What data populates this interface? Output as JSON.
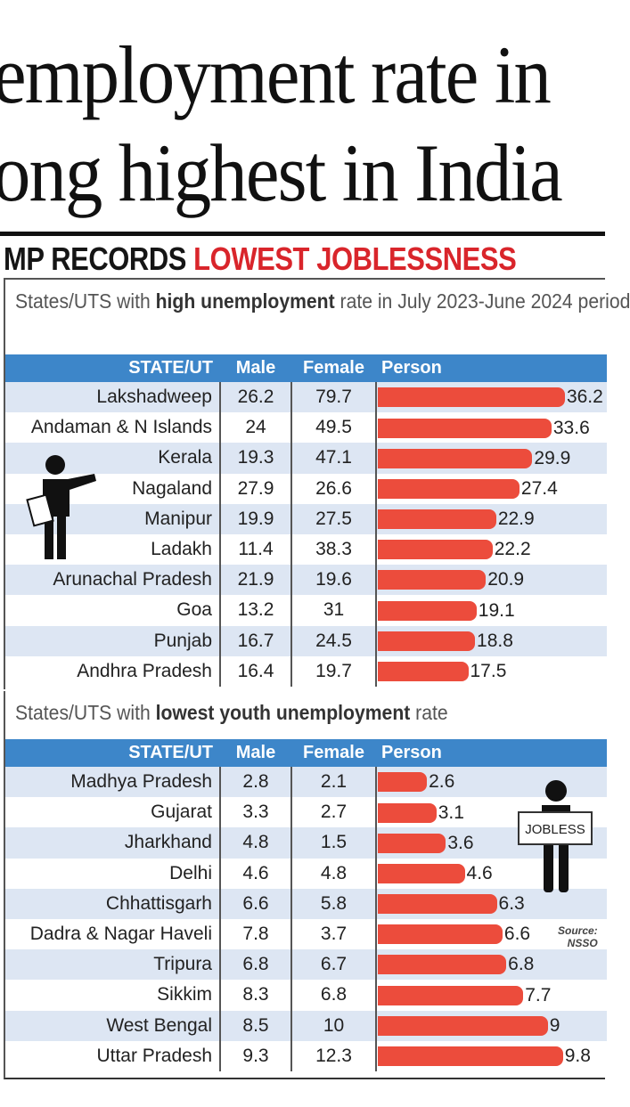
{
  "headline": {
    "line1": "employment rate in",
    "line2": "ong highest in India"
  },
  "kicker": {
    "part1": "MP RECORDS",
    "part2": "LOWEST JOBLESSNESS"
  },
  "colors": {
    "header": "#3d86c9",
    "bar": "#ec4c3c",
    "row_alt": "#dde6f3",
    "accent": "#d9252b"
  },
  "chart_data": [
    {
      "type": "table",
      "title_plain1": "States/UTS with ",
      "title_bold": "high unemployment",
      "title_plain2": " rate in July 2023-June 2024 period",
      "columns": [
        "STATE/UT",
        "Male",
        "Female",
        "Person"
      ],
      "rows": [
        [
          "Lakshadweep",
          26.2,
          79.7,
          36.2
        ],
        [
          "Andaman & N Islands",
          24,
          49.5,
          33.6
        ],
        [
          "Kerala",
          19.3,
          47.1,
          29.9
        ],
        [
          "Nagaland",
          27.9,
          26.6,
          27.4
        ],
        [
          "Manipur",
          19.9,
          27.5,
          22.9
        ],
        [
          "Ladakh",
          11.4,
          38.3,
          22.2
        ],
        [
          "Arunachal Pradesh",
          21.9,
          19.6,
          20.9
        ],
        [
          "Goa",
          13.2,
          31,
          19.1
        ],
        [
          "Punjab",
          16.7,
          24.5,
          18.8
        ],
        [
          "Andhra Pradesh",
          16.4,
          19.7,
          17.5
        ]
      ]
    },
    {
      "type": "table",
      "title_plain1": "States/UTS with ",
      "title_bold": "lowest youth unemployment",
      "title_plain2": " rate",
      "columns": [
        "STATE/UT",
        "Male",
        "Female",
        "Person"
      ],
      "rows": [
        [
          "Madhya Pradesh",
          2.8,
          2.1,
          2.6
        ],
        [
          "Gujarat",
          3.3,
          2.7,
          3.1
        ],
        [
          "Jharkhand",
          4.8,
          1.5,
          3.6
        ],
        [
          "Delhi",
          4.6,
          4.8,
          4.6
        ],
        [
          "Chhattisgarh",
          6.6,
          5.8,
          6.3
        ],
        [
          "Dadra & Nagar Haveli",
          7.8,
          3.7,
          6.6
        ],
        [
          "Tripura",
          6.8,
          6.7,
          6.8
        ],
        [
          "Sikkim",
          8.3,
          6.8,
          7.7
        ],
        [
          "West Bengal",
          8.5,
          10,
          9
        ],
        [
          "Uttar Pradesh",
          9.3,
          12.3,
          9.8
        ]
      ]
    }
  ],
  "sign_text": "JOBLESS",
  "source": {
    "label": "Source:",
    "value": "NSSO"
  }
}
